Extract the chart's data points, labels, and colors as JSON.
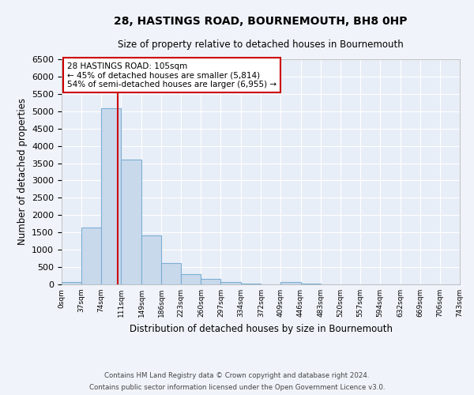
{
  "title": "28, HASTINGS ROAD, BOURNEMOUTH, BH8 0HP",
  "subtitle": "Size of property relative to detached houses in Bournemouth",
  "xlabel": "Distribution of detached houses by size in Bournemouth",
  "ylabel": "Number of detached properties",
  "bar_edges": [
    0,
    37,
    74,
    111,
    149,
    186,
    223,
    260,
    297,
    334,
    372,
    409,
    446,
    483,
    520,
    557,
    594,
    632,
    669,
    706,
    743
  ],
  "bar_heights": [
    70,
    1650,
    5080,
    3600,
    1420,
    615,
    305,
    155,
    75,
    30,
    0,
    60,
    30,
    0,
    0,
    0,
    0,
    0,
    0,
    0
  ],
  "bar_color": "#c9d9ec",
  "bar_edge_color": "#7bafd4",
  "bar_edge_width": 0.8,
  "vline_x": 105,
  "vline_color": "#cc0000",
  "annotation_line1": "28 HASTINGS ROAD: 105sqm",
  "annotation_line2": "← 45% of detached houses are smaller (5,814)",
  "annotation_line3": "54% of semi-detached houses are larger (6,955) →",
  "annotation_box_color": "#ffffff",
  "annotation_box_edge": "#cc0000",
  "ylim": [
    0,
    6500
  ],
  "xlim": [
    0,
    743
  ],
  "tick_labels": [
    "0sqm",
    "37sqm",
    "74sqm",
    "111sqm",
    "149sqm",
    "186sqm",
    "223sqm",
    "260sqm",
    "297sqm",
    "334sqm",
    "372sqm",
    "409sqm",
    "446sqm",
    "483sqm",
    "520sqm",
    "557sqm",
    "594sqm",
    "632sqm",
    "669sqm",
    "706sqm",
    "743sqm"
  ],
  "tick_positions": [
    0,
    37,
    74,
    111,
    149,
    186,
    223,
    260,
    297,
    334,
    372,
    409,
    446,
    483,
    520,
    557,
    594,
    632,
    669,
    706,
    743
  ],
  "bg_color": "#f0f4fa",
  "plot_bg_color": "#e8eef7",
  "grid_color": "#ffffff",
  "footer_line1": "Contains HM Land Registry data © Crown copyright and database right 2024.",
  "footer_line2": "Contains public sector information licensed under the Open Government Licence v3.0."
}
